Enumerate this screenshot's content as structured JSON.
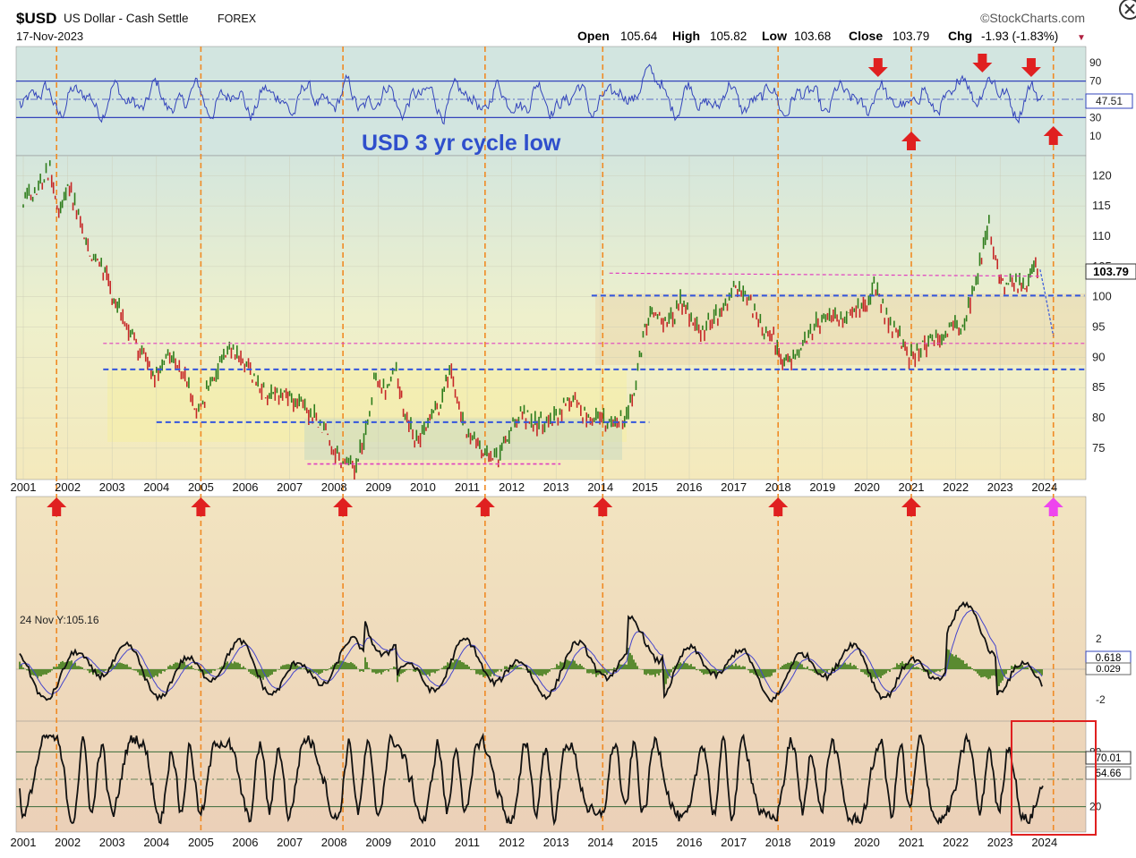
{
  "header": {
    "symbol": "$USD",
    "name": "US Dollar - Cash Settle",
    "exchange": "FOREX",
    "date": "17-Nov-2023",
    "brand": "©StockCharts.com",
    "open_label": "Open",
    "open": "105.64",
    "high_label": "High",
    "high": "105.82",
    "low_label": "Low",
    "low": "103.68",
    "close_label": "Close",
    "close": "103.79",
    "chg_label": "Chg",
    "chg": "-1.93 (-1.83%)",
    "chg_arrow": "▼"
  },
  "annotation": "USD 3 yr cycle low",
  "colors": {
    "up": "#2e7d1c",
    "down": "#c62828",
    "cycle_line": "#f08a24",
    "arrow": "#e02020",
    "arrow_future": "#ee44ee",
    "support": "#3355dd",
    "resistance": "#e040c0",
    "rsi_band": "#3344bb",
    "macd_line": "#111111",
    "macd_signal": "#4444cc",
    "macd_hist": "#5a8a30",
    "stoch": "#111111",
    "highlight_box": "#e02020"
  },
  "x_axis_labels": [
    "2001",
    "2002",
    "2003",
    "2004",
    "2005",
    "2006",
    "2007",
    "2008",
    "2009",
    "2010",
    "2011",
    "2012",
    "2013",
    "2014",
    "2015",
    "2016",
    "2017",
    "2018",
    "2019",
    "2020",
    "2021",
    "2022",
    "2023",
    "2024"
  ],
  "chart_data": [
    {
      "type": "line",
      "panel": "rsi",
      "y_ticks": [
        "90",
        "70",
        "50",
        "30",
        "10"
      ],
      "bands": [
        70,
        30
      ],
      "last_value_label": "47.51",
      "ylim": [
        0,
        100
      ]
    },
    {
      "type": "line",
      "panel": "price",
      "series": [
        {
          "x": [
            2001.0,
            2001.3,
            2001.6,
            2001.8,
            2002.0,
            2002.2,
            2002.5,
            2002.8,
            2003.0,
            2003.2,
            2003.5,
            2003.8,
            2004.0,
            2004.3,
            2004.6,
            2004.9,
            2005.0,
            2005.3,
            2005.6,
            2005.9,
            2006.2,
            2006.5,
            2006.8,
            2007.0,
            2007.3,
            2007.6,
            2007.9,
            2008.2,
            2008.5,
            2008.8,
            2008.9,
            2009.2,
            2009.4,
            2009.6,
            2009.9,
            2010.2,
            2010.4,
            2010.6,
            2010.9,
            2011.2,
            2011.4,
            2011.7,
            2011.9,
            2012.2,
            2012.4,
            2012.7,
            2013.0,
            2013.3,
            2013.6,
            2013.9,
            2014.2,
            2014.5,
            2014.8,
            2015.0,
            2015.2,
            2015.5,
            2015.8,
            2016.0,
            2016.3,
            2016.6,
            2016.9,
            2017.0,
            2017.3,
            2017.6,
            2017.9,
            2018.1,
            2018.3,
            2018.6,
            2018.9,
            2019.2,
            2019.5,
            2019.8,
            2020.0,
            2020.2,
            2020.4,
            2020.7,
            2020.9,
            2021.0,
            2021.3,
            2021.6,
            2021.9,
            2022.2,
            2022.5,
            2022.75,
            2022.9,
            2023.1,
            2023.4,
            2023.6,
            2023.8,
            2023.88
          ],
          "y": [
            116,
            118,
            121,
            113,
            119,
            114,
            107,
            105,
            100,
            97,
            93,
            89,
            87,
            90,
            88,
            81,
            82,
            87,
            91,
            90,
            86,
            84,
            84,
            84,
            82,
            80,
            76,
            73,
            72,
            80,
            87,
            84,
            88,
            80,
            76,
            80,
            82,
            88,
            79,
            76,
            74,
            74,
            77,
            81,
            80,
            79,
            80,
            83,
            81,
            80,
            79,
            80,
            85,
            95,
            98,
            95,
            99,
            97,
            94,
            97,
            100,
            102,
            100,
            95,
            93,
            89,
            90,
            93,
            96,
            96,
            97,
            98,
            98,
            102,
            97,
            94,
            90,
            90,
            92,
            93,
            95,
            96,
            104,
            112,
            106,
            101,
            102,
            101,
            106,
            103.79
          ],
          "name": ""
        }
      ],
      "y_ticks": [
        "120",
        "115",
        "110",
        "105",
        "100",
        "95",
        "90",
        "85",
        "80",
        "75"
      ],
      "last_value_label": "103.79",
      "ylim": [
        71,
        123
      ]
    },
    {
      "type": "line",
      "panel": "macd",
      "inset_label": "24 Nov Y:105.16",
      "y_ticks": [
        "2",
        "-2"
      ],
      "last_value_labels": [
        "0.618",
        "0.029"
      ]
    },
    {
      "type": "line",
      "panel": "stoch",
      "y_ticks": [
        "80",
        "20"
      ],
      "last_value_labels": [
        "70.01",
        "54.66"
      ]
    }
  ]
}
